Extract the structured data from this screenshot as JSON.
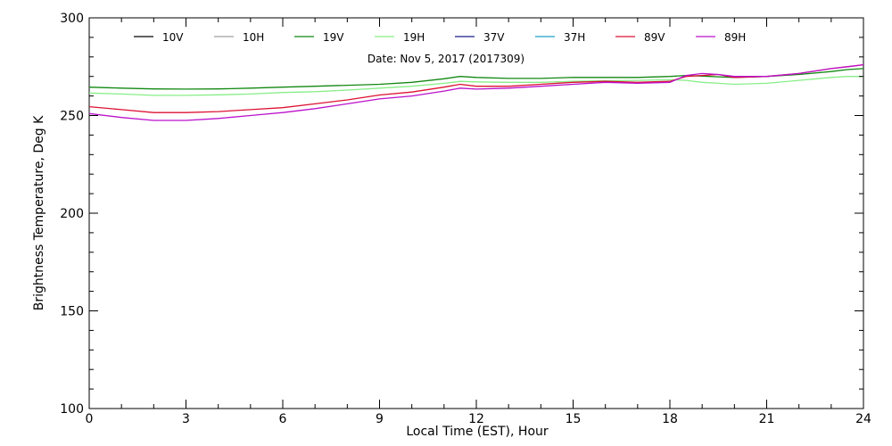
{
  "chart_data": {
    "type": "line",
    "title": "Date: Nov  5, 2017 (2017309)",
    "xlabel": "Local Time (EST), Hour",
    "ylabel": "Brightness Temperature, Deg K",
    "xlim": [
      0,
      24
    ],
    "ylim": [
      100,
      300
    ],
    "xticks": [
      0,
      3,
      6,
      9,
      12,
      15,
      18,
      21,
      24
    ],
    "yticks": [
      100,
      150,
      200,
      250,
      300
    ],
    "grid": false,
    "legend_position": "top",
    "x": [
      0,
      1,
      2,
      3,
      4,
      5,
      6,
      7,
      8,
      9,
      10,
      11,
      11.5,
      12,
      13,
      14,
      15,
      16,
      17,
      18,
      18.5,
      19,
      19.5,
      20,
      21,
      22,
      23,
      23.5,
      24
    ],
    "series": [
      {
        "name": "10V",
        "color": "#000000",
        "values": [
          null,
          null,
          null,
          null,
          null,
          null,
          null,
          null,
          null,
          null,
          null,
          null,
          null,
          null,
          null,
          null,
          null,
          null,
          null,
          null,
          null,
          null,
          null,
          null,
          null,
          null,
          null,
          null,
          null
        ]
      },
      {
        "name": "10H",
        "color": "#a0a0a0",
        "values": [
          null,
          null,
          null,
          null,
          null,
          null,
          null,
          null,
          null,
          null,
          null,
          null,
          null,
          null,
          null,
          null,
          null,
          null,
          null,
          null,
          null,
          null,
          null,
          null,
          null,
          null,
          null,
          null,
          null
        ]
      },
      {
        "name": "19V",
        "color": "#118811",
        "values": [
          264.5,
          264.0,
          263.6,
          263.5,
          263.6,
          264.0,
          264.5,
          265.0,
          265.5,
          266.0,
          267.0,
          268.8,
          270.0,
          269.5,
          269.0,
          269.0,
          269.5,
          269.5,
          269.5,
          270.0,
          270.5,
          270.2,
          269.8,
          269.5,
          270.0,
          271.0,
          272.5,
          273.5,
          274.0
        ]
      },
      {
        "name": "19H",
        "color": "#88ee88",
        "values": [
          261.5,
          261.0,
          260.3,
          260.3,
          260.6,
          261.0,
          261.8,
          262.2,
          263.0,
          264.0,
          265.0,
          266.5,
          267.5,
          267.2,
          267.0,
          267.0,
          267.5,
          267.8,
          268.0,
          268.3,
          268.0,
          267.0,
          266.5,
          266.0,
          266.5,
          268.0,
          269.5,
          270.0,
          270.0
        ]
      },
      {
        "name": "37V",
        "color": "#1a1a8a",
        "values": [
          null,
          null,
          null,
          null,
          null,
          null,
          null,
          null,
          null,
          null,
          null,
          null,
          null,
          null,
          null,
          null,
          null,
          null,
          null,
          null,
          null,
          null,
          null,
          null,
          null,
          null,
          null,
          null,
          null
        ]
      },
      {
        "name": "37H",
        "color": "#1aa0c8",
        "values": [
          null,
          null,
          null,
          null,
          null,
          null,
          null,
          null,
          null,
          null,
          null,
          null,
          null,
          null,
          null,
          null,
          null,
          null,
          null,
          null,
          null,
          null,
          null,
          null,
          null,
          null,
          null,
          null,
          null
        ]
      },
      {
        "name": "89V",
        "color": "#dd1133",
        "values": [
          254.5,
          253.0,
          251.5,
          251.5,
          252.0,
          253.0,
          254.0,
          256.0,
          258.0,
          260.5,
          262.0,
          264.5,
          266.0,
          265.0,
          265.0,
          266.0,
          267.0,
          267.5,
          267.0,
          267.5,
          270.0,
          270.5,
          271.0,
          269.5,
          270.0,
          271.5,
          274.0,
          275.0,
          276.0
        ]
      },
      {
        "name": "89H",
        "color": "#bb11cc",
        "values": [
          251.0,
          249.0,
          247.5,
          247.5,
          248.5,
          250.0,
          251.5,
          253.5,
          256.0,
          258.5,
          260.0,
          262.5,
          264.0,
          263.5,
          264.0,
          265.0,
          266.0,
          267.0,
          266.5,
          267.0,
          270.5,
          271.5,
          271.0,
          270.0,
          270.0,
          271.5,
          274.0,
          275.0,
          276.0
        ]
      }
    ]
  }
}
